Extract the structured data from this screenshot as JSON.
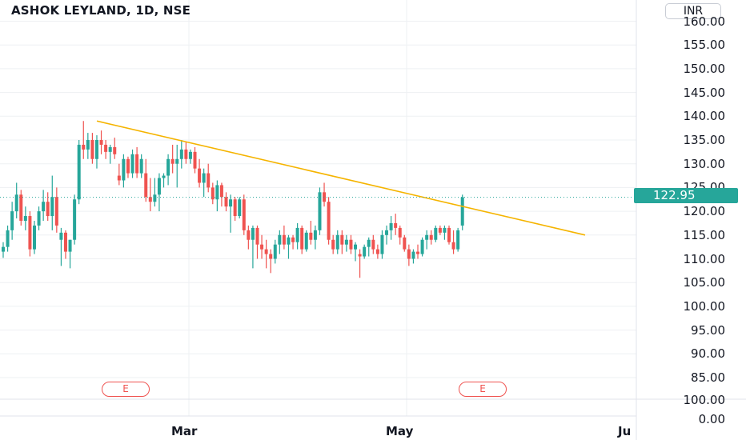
{
  "header": {
    "title": "ASHOK LEYLAND, 1D, NSE",
    "currency": "INR"
  },
  "price_tag": "122.95",
  "price_axis": {
    "upper_labels": [
      "160.00",
      "155.00",
      "150.00",
      "145.00",
      "140.00",
      "135.00",
      "130.00",
      "125.00",
      "120.00",
      "115.00",
      "110.00",
      "105.00",
      "100.00",
      "95.00",
      "90.00",
      "85.00"
    ],
    "lower_labels": [
      "100.00",
      "0.00"
    ]
  },
  "time_axis": {
    "labels": [
      "Mar",
      "May",
      "Ju"
    ]
  },
  "events": [
    "E",
    "E"
  ],
  "colors": {
    "up": "#26a69a",
    "down": "#ef5350",
    "trendline": "#f5b400",
    "price_line": "#26a69a",
    "grid": "#eef0f3",
    "text": "#131722"
  },
  "chart_data": {
    "type": "candlestick",
    "title": "ASHOK LEYLAND, 1D, NSE",
    "ylim": [
      85,
      160
    ],
    "last_price": 122.95,
    "candles": [
      [
        111.5,
        113.5,
        110.2,
        112.5
      ],
      [
        112.5,
        117.0,
        111.5,
        116.0
      ],
      [
        116.0,
        122.0,
        114.0,
        120.0
      ],
      [
        120.0,
        126.0,
        118.5,
        123.5
      ],
      [
        123.5,
        124.5,
        117.0,
        118.0
      ],
      [
        118.0,
        121.0,
        116.0,
        119.0
      ],
      [
        119.0,
        120.0,
        110.5,
        112.0
      ],
      [
        112.0,
        118.0,
        111.0,
        117.0
      ],
      [
        117.0,
        121.0,
        116.0,
        120.0
      ],
      [
        120.0,
        124.5,
        118.0,
        122.0
      ],
      [
        122.0,
        124.0,
        118.0,
        119.0
      ],
      [
        119.0,
        127.5,
        116.0,
        123.0
      ],
      [
        123.0,
        125.0,
        115.5,
        117.0
      ],
      [
        114.0,
        116.5,
        108.5,
        115.5
      ],
      [
        115.5,
        116.0,
        110.0,
        111.5
      ],
      [
        111.5,
        114.0,
        108.0,
        114.0
      ],
      [
        114.0,
        123.5,
        113.0,
        122.5
      ],
      [
        122.5,
        135.0,
        121.5,
        134.0
      ],
      [
        134.0,
        139.0,
        131.0,
        133.0
      ],
      [
        133.0,
        136.5,
        131.0,
        135.0
      ],
      [
        135.0,
        136.5,
        130.0,
        131.0
      ],
      [
        131.0,
        136.0,
        129.0,
        135.0
      ],
      [
        135.0,
        137.0,
        132.0,
        134.0
      ],
      [
        134.0,
        135.0,
        131.0,
        132.5
      ],
      [
        132.5,
        134.0,
        130.0,
        133.5
      ],
      [
        133.5,
        135.5,
        131.0,
        132.0
      ],
      [
        127.5,
        130.0,
        125.5,
        126.5
      ],
      [
        126.5,
        132.0,
        125.0,
        131.0
      ],
      [
        131.0,
        131.5,
        127.0,
        128.0
      ],
      [
        128.0,
        133.0,
        127.0,
        132.0
      ],
      [
        132.0,
        133.5,
        127.0,
        128.0
      ],
      [
        128.0,
        132.0,
        127.0,
        131.0
      ],
      [
        128.0,
        131.0,
        122.0,
        123.0
      ],
      [
        123.0,
        127.0,
        120.0,
        122.0
      ],
      [
        122.0,
        127.0,
        121.0,
        123.5
      ],
      [
        123.5,
        128.0,
        120.0,
        127.0
      ],
      [
        127.0,
        128.0,
        125.0,
        127.5
      ],
      [
        127.5,
        132.0,
        125.5,
        131.0
      ],
      [
        131.0,
        134.0,
        128.0,
        130.0
      ],
      [
        130.0,
        134.0,
        125.0,
        131.0
      ],
      [
        131.0,
        135.0,
        129.0,
        133.0
      ],
      [
        133.0,
        134.5,
        130.0,
        131.0
      ],
      [
        131.0,
        133.0,
        130.0,
        132.5
      ],
      [
        132.5,
        133.5,
        128.0,
        129.0
      ],
      [
        129.0,
        131.0,
        125.0,
        126.0
      ],
      [
        126.0,
        129.0,
        123.0,
        128.0
      ],
      [
        128.0,
        130.0,
        124.0,
        125.0
      ],
      [
        125.0,
        126.0,
        121.5,
        122.5
      ],
      [
        122.5,
        126.5,
        120.0,
        125.5
      ],
      [
        125.5,
        126.0,
        121.0,
        123.0
      ],
      [
        123.0,
        124.0,
        120.0,
        121.0
      ],
      [
        121.0,
        123.5,
        115.5,
        122.5
      ],
      [
        122.5,
        123.0,
        118.0,
        119.0
      ],
      [
        119.0,
        123.0,
        118.5,
        122.5
      ],
      [
        122.5,
        123.5,
        115.0,
        116.0
      ],
      [
        116.0,
        117.0,
        112.0,
        114.0
      ],
      [
        114.0,
        117.0,
        108.0,
        116.5
      ],
      [
        116.5,
        117.0,
        110.0,
        113.0
      ],
      [
        113.0,
        115.0,
        110.0,
        112.0
      ],
      [
        112.0,
        114.0,
        108.0,
        111.0
      ],
      [
        111.0,
        112.0,
        107.0,
        110.0
      ],
      [
        110.0,
        114.0,
        109.0,
        113.0
      ],
      [
        113.0,
        116.0,
        111.0,
        115.0
      ],
      [
        115.0,
        117.0,
        112.0,
        113.0
      ],
      [
        113.0,
        115.0,
        110.0,
        114.5
      ],
      [
        114.5,
        115.0,
        112.0,
        113.5
      ],
      [
        113.5,
        117.5,
        112.0,
        116.5
      ],
      [
        116.5,
        117.0,
        111.0,
        112.0
      ],
      [
        112.0,
        116.0,
        111.5,
        115.5
      ],
      [
        115.5,
        118.0,
        113.0,
        114.0
      ],
      [
        114.0,
        117.0,
        112.0,
        116.0
      ],
      [
        116.0,
        125.0,
        115.0,
        124.0
      ],
      [
        124.0,
        126.0,
        121.0,
        122.0
      ],
      [
        122.0,
        123.0,
        113.0,
        114.0
      ],
      [
        114.0,
        115.0,
        111.0,
        112.0
      ],
      [
        112.0,
        116.0,
        111.0,
        115.0
      ],
      [
        115.0,
        116.0,
        111.0,
        113.0
      ],
      [
        113.0,
        115.0,
        111.5,
        114.0
      ],
      [
        114.0,
        115.0,
        111.0,
        112.0
      ],
      [
        112.0,
        113.5,
        109.5,
        113.0
      ],
      [
        111.0,
        112.0,
        106.0,
        110.5
      ],
      [
        110.5,
        113.0,
        110.0,
        112.5
      ],
      [
        112.5,
        114.5,
        110.5,
        114.0
      ],
      [
        114.0,
        115.0,
        111.0,
        112.0
      ],
      [
        112.0,
        113.0,
        110.0,
        111.0
      ],
      [
        111.0,
        116.0,
        110.0,
        115.0
      ],
      [
        115.0,
        117.0,
        113.0,
        116.0
      ],
      [
        116.0,
        119.0,
        114.0,
        117.5
      ],
      [
        117.5,
        119.5,
        115.0,
        116.5
      ],
      [
        116.5,
        117.0,
        113.0,
        114.5
      ],
      [
        114.5,
        115.0,
        111.5,
        112.0
      ],
      [
        112.0,
        113.0,
        108.5,
        110.0
      ],
      [
        110.0,
        112.0,
        109.0,
        111.5
      ],
      [
        111.5,
        113.0,
        110.0,
        111.0
      ],
      [
        111.0,
        114.5,
        110.5,
        114.0
      ],
      [
        114.0,
        116.0,
        112.0,
        115.0
      ],
      [
        115.0,
        116.0,
        113.0,
        114.0
      ],
      [
        114.0,
        117.0,
        113.5,
        116.5
      ],
      [
        116.5,
        117.0,
        115.0,
        115.5
      ],
      [
        115.5,
        117.0,
        114.0,
        116.5
      ],
      [
        116.5,
        117.0,
        113.0,
        113.5
      ],
      [
        113.5,
        116.0,
        111.0,
        112.0
      ],
      [
        112.0,
        116.5,
        111.5,
        116.0
      ],
      [
        117.0,
        123.5,
        116.0,
        122.95
      ]
    ],
    "trendline": [
      {
        "from": {
          "x": "2024-02-02",
          "y": 139.0
        },
        "to": {
          "x": "2024-06-17",
          "y": 115.0
        }
      }
    ]
  }
}
